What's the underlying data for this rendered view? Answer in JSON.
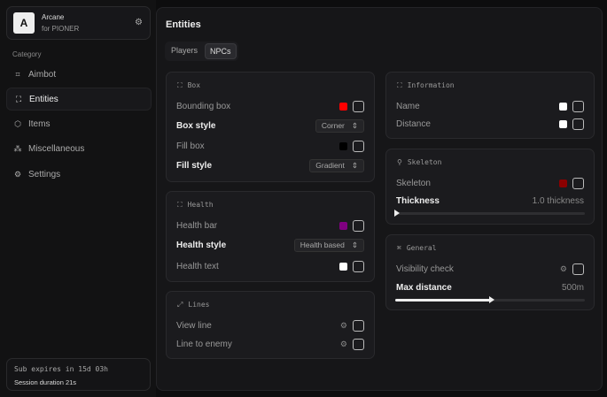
{
  "brand": {
    "logo": "A",
    "name": "Arcane",
    "subtitle": "for PIONER"
  },
  "sidebar": {
    "category": "Category",
    "items": [
      {
        "label": "Aimbot",
        "icon": "crosshair-icon"
      },
      {
        "label": "Entities",
        "icon": "entities-icon",
        "active": true
      },
      {
        "label": "Items",
        "icon": "cube-icon"
      },
      {
        "label": "Miscellaneous",
        "icon": "misc-icon"
      },
      {
        "label": "Settings",
        "icon": "gear-icon"
      }
    ]
  },
  "footer": {
    "subscription": "Sub expires in 15d 03h",
    "session": "Session duration 21s"
  },
  "main": {
    "title": "Entities",
    "tabs": [
      {
        "label": "Players"
      },
      {
        "label": "NPCs",
        "active": true
      }
    ]
  },
  "box": {
    "title": "Box",
    "bounding_box": "Bounding box",
    "bounding_color": "#ff0000",
    "box_style": "Box style",
    "box_style_value": "Corner",
    "fill_box": "Fill box",
    "fill_color": "#000000",
    "fill_style": "Fill style",
    "fill_style_value": "Gradient"
  },
  "health": {
    "title": "Health",
    "health_bar": "Health bar",
    "bar_color": "#800080",
    "health_style": "Health style",
    "health_style_value": "Health based",
    "health_text": "Health text",
    "text_color": "#ffffff"
  },
  "lines": {
    "title": "Lines",
    "view_line": "View line",
    "line_to_enemy": "Line to enemy"
  },
  "information": {
    "title": "Information",
    "name": "Name",
    "name_color": "#ffffff",
    "distance": "Distance",
    "distance_color": "#ffffff"
  },
  "skeleton": {
    "title": "Skeleton",
    "skeleton": "Skeleton",
    "skeleton_color": "#8b0000",
    "thickness": "Thickness",
    "thickness_value": "1.0 thickness",
    "thickness_level": 0
  },
  "general": {
    "title": "General",
    "visibility_check": "Visibility check",
    "max_distance": "Max distance",
    "max_distance_value": "500m",
    "max_distance_level": 0.5
  }
}
